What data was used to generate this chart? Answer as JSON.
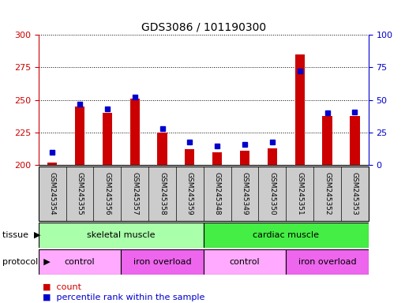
{
  "title": "GDS3086 / 101190300",
  "samples": [
    "GSM245354",
    "GSM245355",
    "GSM245356",
    "GSM245357",
    "GSM245358",
    "GSM245359",
    "GSM245348",
    "GSM245349",
    "GSM245350",
    "GSM245351",
    "GSM245352",
    "GSM245353"
  ],
  "count_values": [
    202,
    245,
    240,
    251,
    225,
    212,
    210,
    211,
    213,
    285,
    238,
    238
  ],
  "percentile_values": [
    10,
    47,
    43,
    52,
    28,
    18,
    15,
    16,
    18,
    72,
    40,
    41
  ],
  "ylim_left": [
    200,
    300
  ],
  "ylim_right": [
    0,
    100
  ],
  "yticks_left": [
    200,
    225,
    250,
    275,
    300
  ],
  "yticks_right": [
    0,
    25,
    50,
    75,
    100
  ],
  "bar_color": "#cc0000",
  "dot_color": "#0000cc",
  "tissue_labels": [
    {
      "text": "skeletal muscle",
      "start": 0,
      "end": 5,
      "color": "#aaffaa"
    },
    {
      "text": "cardiac muscle",
      "start": 6,
      "end": 11,
      "color": "#44ee44"
    }
  ],
  "protocol_labels": [
    {
      "text": "control",
      "start": 0,
      "end": 2,
      "color": "#ffaaff"
    },
    {
      "text": "iron overload",
      "start": 3,
      "end": 5,
      "color": "#ee66ee"
    },
    {
      "text": "control",
      "start": 6,
      "end": 8,
      "color": "#ffaaff"
    },
    {
      "text": "iron overload",
      "start": 9,
      "end": 11,
      "color": "#ee66ee"
    }
  ],
  "left_axis_color": "#cc0000",
  "right_axis_color": "#0000cc",
  "grid_color": "#000000",
  "background_color": "#ffffff",
  "tick_label_area_color": "#cccccc",
  "legend_count_label": "count",
  "legend_pct_label": "percentile rank within the sample",
  "bar_width": 0.35
}
